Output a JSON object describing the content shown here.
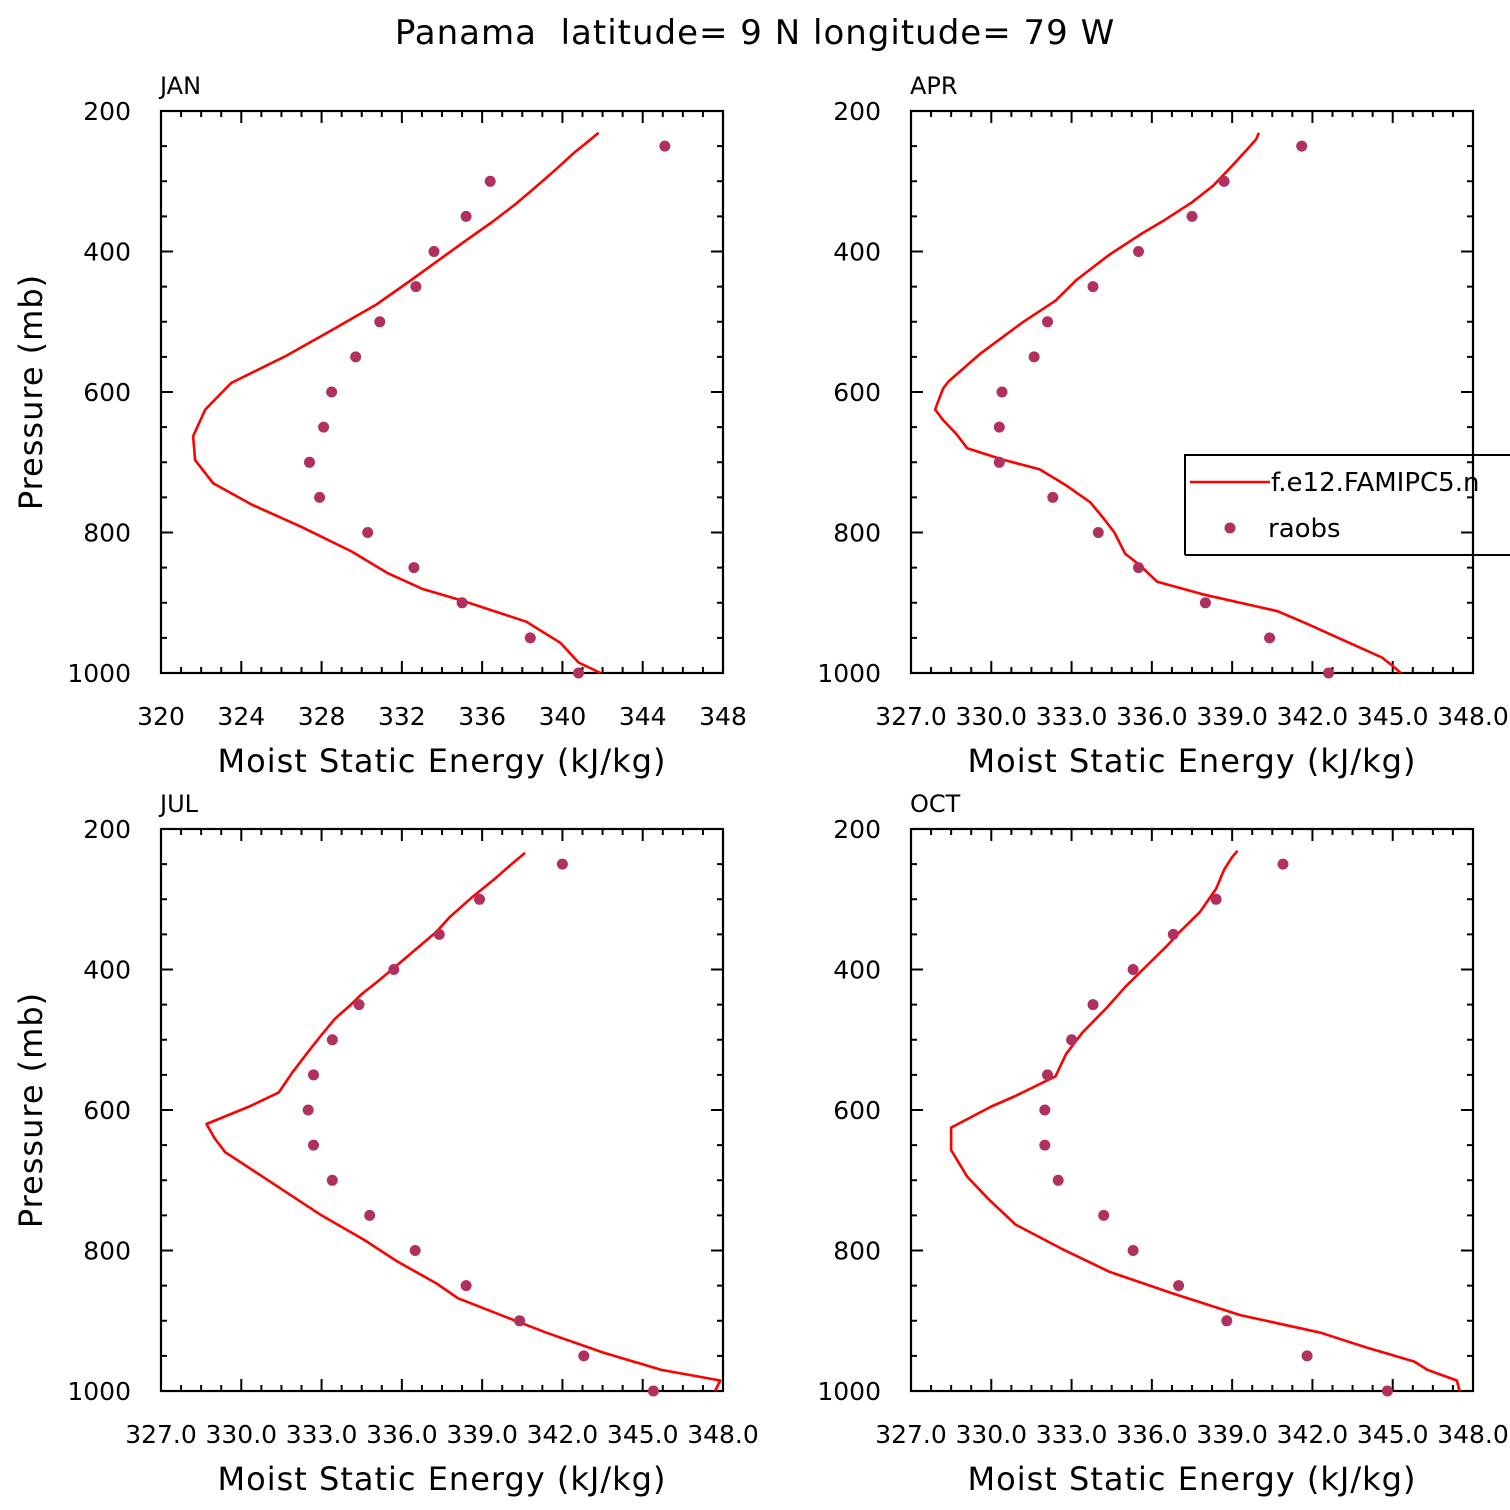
{
  "chart_data": {
    "type": "line",
    "title": "Panama  latitude= 9 N longitude= 79 W",
    "legend": {
      "placement": "right",
      "entries": [
        {
          "label": "f.e12.FAMIPC5.n",
          "kind": "line",
          "color": "#ff0000"
        },
        {
          "label": "raobs",
          "kind": "marker",
          "color": "#b03060"
        }
      ]
    },
    "panels": [
      {
        "title": "JAN",
        "xlabel": "Moist Static Energy (kJ/kg)",
        "ylabel": "Pressure (mb)",
        "xlim": [
          320,
          348
        ],
        "ylim": [
          200,
          1000
        ],
        "y_inverted": true,
        "xticks": [
          320,
          324,
          328,
          332,
          336,
          340,
          344,
          348
        ],
        "xtick_labels": [
          "320",
          "324",
          "328",
          "332",
          "336",
          "340",
          "344",
          "348"
        ],
        "yticks": [
          200,
          400,
          600,
          800,
          1000
        ],
        "ytick_labels": [
          "200",
          "400",
          "600",
          "800",
          "1000"
        ],
        "model": [
          [
            341.9,
            1000
          ],
          [
            340.8,
            985
          ],
          [
            339.9,
            957
          ],
          [
            338.2,
            927
          ],
          [
            335.0,
            897
          ],
          [
            333.0,
            880
          ],
          [
            331.3,
            858
          ],
          [
            329.5,
            827
          ],
          [
            327.0,
            792
          ],
          [
            324.5,
            760
          ],
          [
            322.6,
            730
          ],
          [
            321.7,
            697
          ],
          [
            321.6,
            663
          ],
          [
            322.2,
            625
          ],
          [
            323.5,
            587
          ],
          [
            326.2,
            549
          ],
          [
            328.5,
            512
          ],
          [
            330.7,
            476
          ],
          [
            332.4,
            442
          ],
          [
            333.9,
            411
          ],
          [
            335.3,
            382
          ],
          [
            336.5,
            358
          ],
          [
            337.6,
            334
          ],
          [
            338.6,
            310
          ],
          [
            339.6,
            285
          ],
          [
            340.6,
            259
          ],
          [
            341.3,
            243
          ],
          [
            341.8,
            231
          ]
        ],
        "obs": [
          [
            340.8,
            1000
          ],
          [
            338.4,
            950
          ],
          [
            335.0,
            900
          ],
          [
            332.6,
            850
          ],
          [
            330.3,
            800
          ],
          [
            327.9,
            750
          ],
          [
            327.4,
            700
          ],
          [
            328.1,
            650
          ],
          [
            328.5,
            600
          ],
          [
            329.7,
            550
          ],
          [
            330.9,
            500
          ],
          [
            332.7,
            450
          ],
          [
            333.6,
            400
          ],
          [
            335.2,
            350
          ],
          [
            336.4,
            300
          ],
          [
            345.1,
            250
          ]
        ]
      },
      {
        "title": "APR",
        "xlabel": "Moist Static Energy (kJ/kg)",
        "ylabel": "",
        "xlim": [
          327.0,
          348.0
        ],
        "ylim": [
          200,
          1000
        ],
        "y_inverted": true,
        "xticks": [
          327.0,
          330.0,
          333.0,
          336.0,
          339.0,
          342.0,
          345.0,
          348.0
        ],
        "xtick_labels": [
          "327.0",
          "330.0",
          "333.0",
          "336.0",
          "339.0",
          "342.0",
          "345.0",
          "348.0"
        ],
        "yticks": [
          200,
          400,
          600,
          800,
          1000
        ],
        "ytick_labels": [
          "200",
          "400",
          "600",
          "800",
          "1000"
        ],
        "model": [
          [
            345.3,
            1000
          ],
          [
            345.1,
            993
          ],
          [
            344.6,
            978
          ],
          [
            343.2,
            954
          ],
          [
            341.8,
            930
          ],
          [
            340.7,
            912
          ],
          [
            337.9,
            888
          ],
          [
            336.2,
            870
          ],
          [
            335.5,
            845
          ],
          [
            335.0,
            830
          ],
          [
            334.6,
            800
          ],
          [
            334.2,
            780
          ],
          [
            333.7,
            757
          ],
          [
            332.8,
            733
          ],
          [
            331.8,
            710
          ],
          [
            330.4,
            696
          ],
          [
            329.1,
            680
          ],
          [
            328.7,
            660
          ],
          [
            328.2,
            640
          ],
          [
            327.9,
            625
          ],
          [
            328.2,
            595
          ],
          [
            328.4,
            585
          ],
          [
            329.6,
            545
          ],
          [
            331.2,
            500
          ],
          [
            332.4,
            470
          ],
          [
            333.2,
            440
          ],
          [
            334.4,
            405
          ],
          [
            335.6,
            375
          ],
          [
            336.4,
            357
          ],
          [
            337.5,
            330
          ],
          [
            338.3,
            306
          ],
          [
            339.0,
            278
          ],
          [
            339.6,
            253
          ],
          [
            339.9,
            240
          ],
          [
            340.0,
            231
          ]
        ],
        "obs": [
          [
            342.6,
            1000
          ],
          [
            340.4,
            950
          ],
          [
            338.0,
            900
          ],
          [
            335.5,
            850
          ],
          [
            334.0,
            800
          ],
          [
            332.3,
            750
          ],
          [
            330.3,
            700
          ],
          [
            330.3,
            650
          ],
          [
            330.4,
            600
          ],
          [
            331.6,
            550
          ],
          [
            332.1,
            500
          ],
          [
            333.8,
            450
          ],
          [
            335.5,
            400
          ],
          [
            337.5,
            350
          ],
          [
            338.7,
            300
          ],
          [
            341.6,
            250
          ]
        ]
      },
      {
        "title": "JUL",
        "xlabel": "Moist Static Energy (kJ/kg)",
        "ylabel": "Pressure (mb)",
        "xlim": [
          327.0,
          348.0
        ],
        "ylim": [
          200,
          1000
        ],
        "y_inverted": true,
        "xticks": [
          327.0,
          330.0,
          333.0,
          336.0,
          339.0,
          342.0,
          345.0,
          348.0
        ],
        "xtick_labels": [
          "327.0",
          "330.0",
          "333.0",
          "336.0",
          "339.0",
          "342.0",
          "345.0",
          "348.0"
        ],
        "yticks": [
          200,
          400,
          600,
          800,
          1000
        ],
        "ytick_labels": [
          "200",
          "400",
          "600",
          "800",
          "1000"
        ],
        "model": [
          [
            347.7,
            1000
          ],
          [
            347.9,
            985
          ],
          [
            345.7,
            970
          ],
          [
            343.5,
            945
          ],
          [
            341.4,
            917
          ],
          [
            339.7,
            892
          ],
          [
            338.1,
            868
          ],
          [
            337.3,
            847
          ],
          [
            335.8,
            815
          ],
          [
            334.6,
            785
          ],
          [
            333.0,
            750
          ],
          [
            331.6,
            715
          ],
          [
            330.6,
            690
          ],
          [
            329.4,
            660
          ],
          [
            329.0,
            640
          ],
          [
            328.7,
            620
          ],
          [
            330.3,
            595
          ],
          [
            331.4,
            575
          ],
          [
            331.9,
            547
          ],
          [
            332.5,
            517
          ],
          [
            333.0,
            493
          ],
          [
            333.5,
            470
          ],
          [
            334.1,
            450
          ],
          [
            334.5,
            435
          ],
          [
            335.1,
            417
          ],
          [
            336.0,
            388
          ],
          [
            337.3,
            346
          ],
          [
            337.8,
            325
          ],
          [
            338.6,
            298
          ],
          [
            339.5,
            270
          ],
          [
            340.1,
            250
          ],
          [
            340.6,
            234
          ]
        ],
        "obs": [
          [
            345.4,
            1000
          ],
          [
            342.8,
            950
          ],
          [
            340.4,
            900
          ],
          [
            338.4,
            850
          ],
          [
            336.5,
            800
          ],
          [
            334.8,
            750
          ],
          [
            333.4,
            700
          ],
          [
            332.7,
            650
          ],
          [
            332.5,
            600
          ],
          [
            332.7,
            550
          ],
          [
            333.4,
            500
          ],
          [
            334.4,
            450
          ],
          [
            335.7,
            400
          ],
          [
            337.4,
            350
          ],
          [
            338.9,
            300
          ],
          [
            342.0,
            250
          ]
        ]
      },
      {
        "title": "OCT",
        "xlabel": "Moist Static Energy (kJ/kg)",
        "ylabel": "",
        "xlim": [
          327.0,
          348.0
        ],
        "ylim": [
          200,
          1000
        ],
        "y_inverted": true,
        "xticks": [
          327.0,
          330.0,
          333.0,
          336.0,
          339.0,
          342.0,
          345.0,
          348.0
        ],
        "xtick_labels": [
          "327.0",
          "330.0",
          "333.0",
          "336.0",
          "339.0",
          "342.0",
          "345.0",
          "348.0"
        ],
        "yticks": [
          200,
          400,
          600,
          800,
          1000
        ],
        "ytick_labels": [
          "200",
          "400",
          "600",
          "800",
          "1000"
        ],
        "model": [
          [
            347.5,
            1000
          ],
          [
            347.4,
            985
          ],
          [
            346.3,
            970
          ],
          [
            345.8,
            958
          ],
          [
            344.0,
            938
          ],
          [
            342.3,
            917
          ],
          [
            339.3,
            892
          ],
          [
            336.7,
            860
          ],
          [
            334.4,
            830
          ],
          [
            332.6,
            797
          ],
          [
            330.9,
            763
          ],
          [
            329.9,
            727
          ],
          [
            329.1,
            695
          ],
          [
            328.5,
            657
          ],
          [
            328.5,
            625
          ],
          [
            330.0,
            595
          ],
          [
            330.9,
            580
          ],
          [
            332.4,
            552
          ],
          [
            332.8,
            520
          ],
          [
            333.4,
            490
          ],
          [
            334.3,
            455
          ],
          [
            335.0,
            425
          ],
          [
            335.8,
            395
          ],
          [
            336.6,
            365
          ],
          [
            337.0,
            348
          ],
          [
            337.8,
            318
          ],
          [
            338.4,
            285
          ],
          [
            338.7,
            258
          ],
          [
            339.0,
            240
          ],
          [
            339.2,
            231
          ]
        ],
        "obs": [
          [
            344.8,
            1000
          ],
          [
            341.8,
            950
          ],
          [
            338.8,
            900
          ],
          [
            337.0,
            850
          ],
          [
            335.3,
            800
          ],
          [
            334.2,
            750
          ],
          [
            332.5,
            700
          ],
          [
            332.0,
            650
          ],
          [
            332.0,
            600
          ],
          [
            332.1,
            550
          ],
          [
            333.0,
            500
          ],
          [
            333.8,
            450
          ],
          [
            335.3,
            400
          ],
          [
            336.8,
            350
          ],
          [
            338.4,
            300
          ],
          [
            340.9,
            250
          ]
        ]
      }
    ]
  }
}
